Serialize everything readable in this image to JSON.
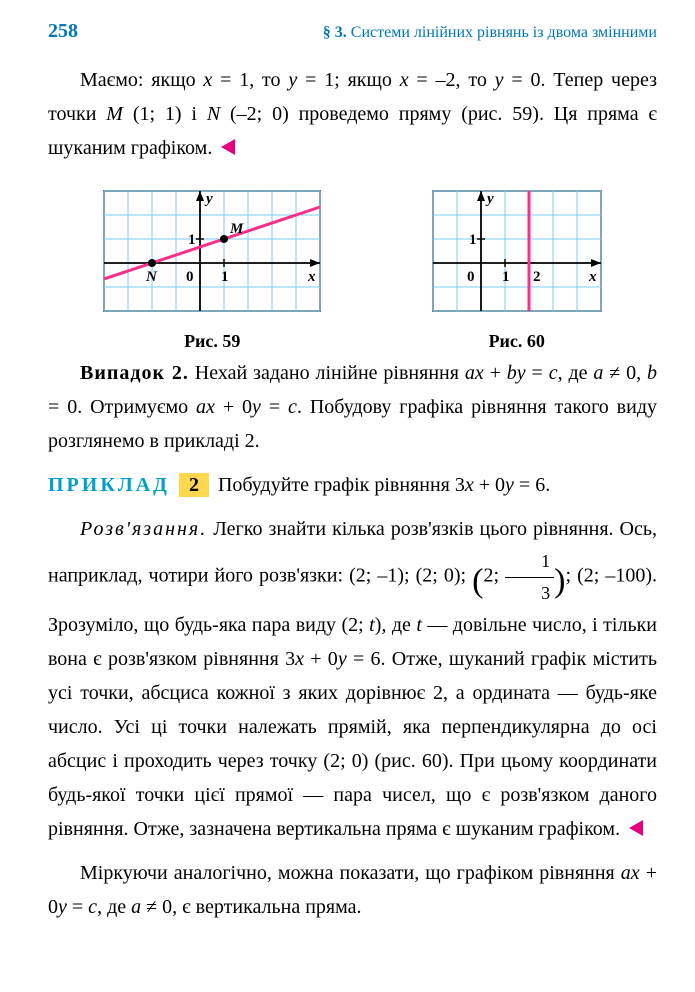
{
  "header": {
    "page_number": "258",
    "section_prefix": "§ 3.",
    "section_text": " Системи лінійних рівнянь із двома змінними"
  },
  "p1": "Маємо: якщо x = 1, то y = 1; якщо x = –2, то y = 0. Тепер через точки M (1; 1) і N (–2; 0) проведемо пряму (рис. 59). Ця пряма є шуканим графіком.",
  "fig59": {
    "label": "Рис. 59",
    "grid_color": "#7ecdf4",
    "axis_color": "#000000",
    "line_color": "#ff2e8b",
    "line_points": {
      "x1": -4,
      "y1": -0.666,
      "x2": 5,
      "y2": 2.333
    },
    "xlim": [
      -4,
      5
    ],
    "ylim": [
      -2,
      3
    ],
    "cell": 24,
    "points": {
      "M": [
        1,
        1
      ],
      "N": [
        -2,
        0
      ]
    },
    "labels": {
      "y": "y",
      "x": "x",
      "one_y": "1",
      "one_x": "1",
      "zero": "0",
      "M": "M",
      "N": "N"
    }
  },
  "fig60": {
    "label": "Рис. 60",
    "grid_color": "#7ecdf4",
    "axis_color": "#000000",
    "line_color": "#ff2e8b",
    "line_x": 2,
    "xlim": [
      -2,
      5
    ],
    "ylim": [
      -2,
      3
    ],
    "cell": 24,
    "labels": {
      "y": "y",
      "x": "x",
      "one_y": "1",
      "one_x": "1",
      "two_x": "2",
      "zero": "0"
    }
  },
  "p2_head": "Випадок 2.",
  "p2_body": " Нехай задано лінійне рівняння ax + by = c, де a ≠ 0, b = 0. Отримуємо ax + 0y = c. Побудову графіка рівняння такого виду розглянемо в прикладі 2.",
  "example": {
    "head": "ПРИКЛАД",
    "num": "2",
    "task": " Побудуйте графік рівняння 3x + 0y = 6."
  },
  "p3_head": "Розв'язання.",
  "p3_a": " Легко знайти кілька розв'язків цього рівняння. Ось, наприклад, чотири його розв'язки: (2; –1); (2; 0); ",
  "p3_frac_num": "1",
  "p3_frac_den": "3",
  "p3_b": "; (2; –100). Зрозуміло, що будь-яка пара виду (2; t), де t — довільне число, і тільки вона є розв'язком рівняння 3x + 0y = 6. Отже, шуканий графік містить усі точки, абсциса кожної з яких дорівнює 2, а ордината — будь-яке число. Усі ці точки належать прямій, яка перпендикулярна до осі абсцис і проходить через точку (2; 0) (рис. 60). При цьому координати будь-якої точки цієї прямої — пара чисел, що є розв'язком даного рівняння. Отже, зазначена вертикальна пряма є шуканим графіком.",
  "p4": "Міркуючи аналогічно, можна показати, що графіком рівняння ax + 0y = c, де a ≠ 0, є вертикальна пряма."
}
